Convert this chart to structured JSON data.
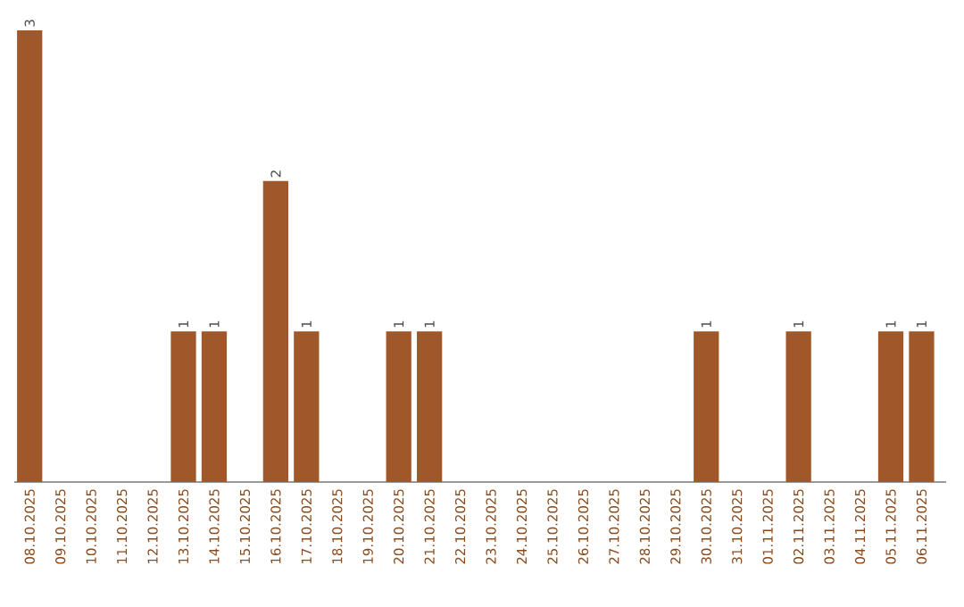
{
  "chart_data": {
    "type": "bar",
    "categories": [
      "08.10.2025",
      "09.10.2025",
      "10.10.2025",
      "11.10.2025",
      "12.10.2025",
      "13.10.2025",
      "14.10.2025",
      "15.10.2025",
      "16.10.2025",
      "17.10.2025",
      "18.10.2025",
      "19.10.2025",
      "20.10.2025",
      "21.10.2025",
      "22.10.2025",
      "23.10.2025",
      "24.10.2025",
      "25.10.2025",
      "26.10.2025",
      "27.10.2025",
      "28.10.2025",
      "29.10.2025",
      "30.10.2025",
      "31.10.2025",
      "01.11.2025",
      "02.11.2025",
      "03.11.2025",
      "04.11.2025",
      "05.11.2025",
      "06.11.2025"
    ],
    "values": [
      3,
      0,
      0,
      0,
      0,
      1,
      1,
      0,
      2,
      1,
      0,
      0,
      1,
      1,
      0,
      0,
      0,
      0,
      0,
      0,
      0,
      0,
      1,
      0,
      0,
      1,
      0,
      0,
      1,
      1
    ],
    "value_labels": [
      "3",
      null,
      null,
      null,
      null,
      "1",
      "1",
      null,
      "2",
      "1",
      null,
      null,
      "1",
      "1",
      null,
      null,
      null,
      null,
      null,
      null,
      null,
      null,
      "1",
      null,
      null,
      "1",
      null,
      null,
      "1",
      "1"
    ],
    "color": "#a0572a",
    "grid": false
  }
}
